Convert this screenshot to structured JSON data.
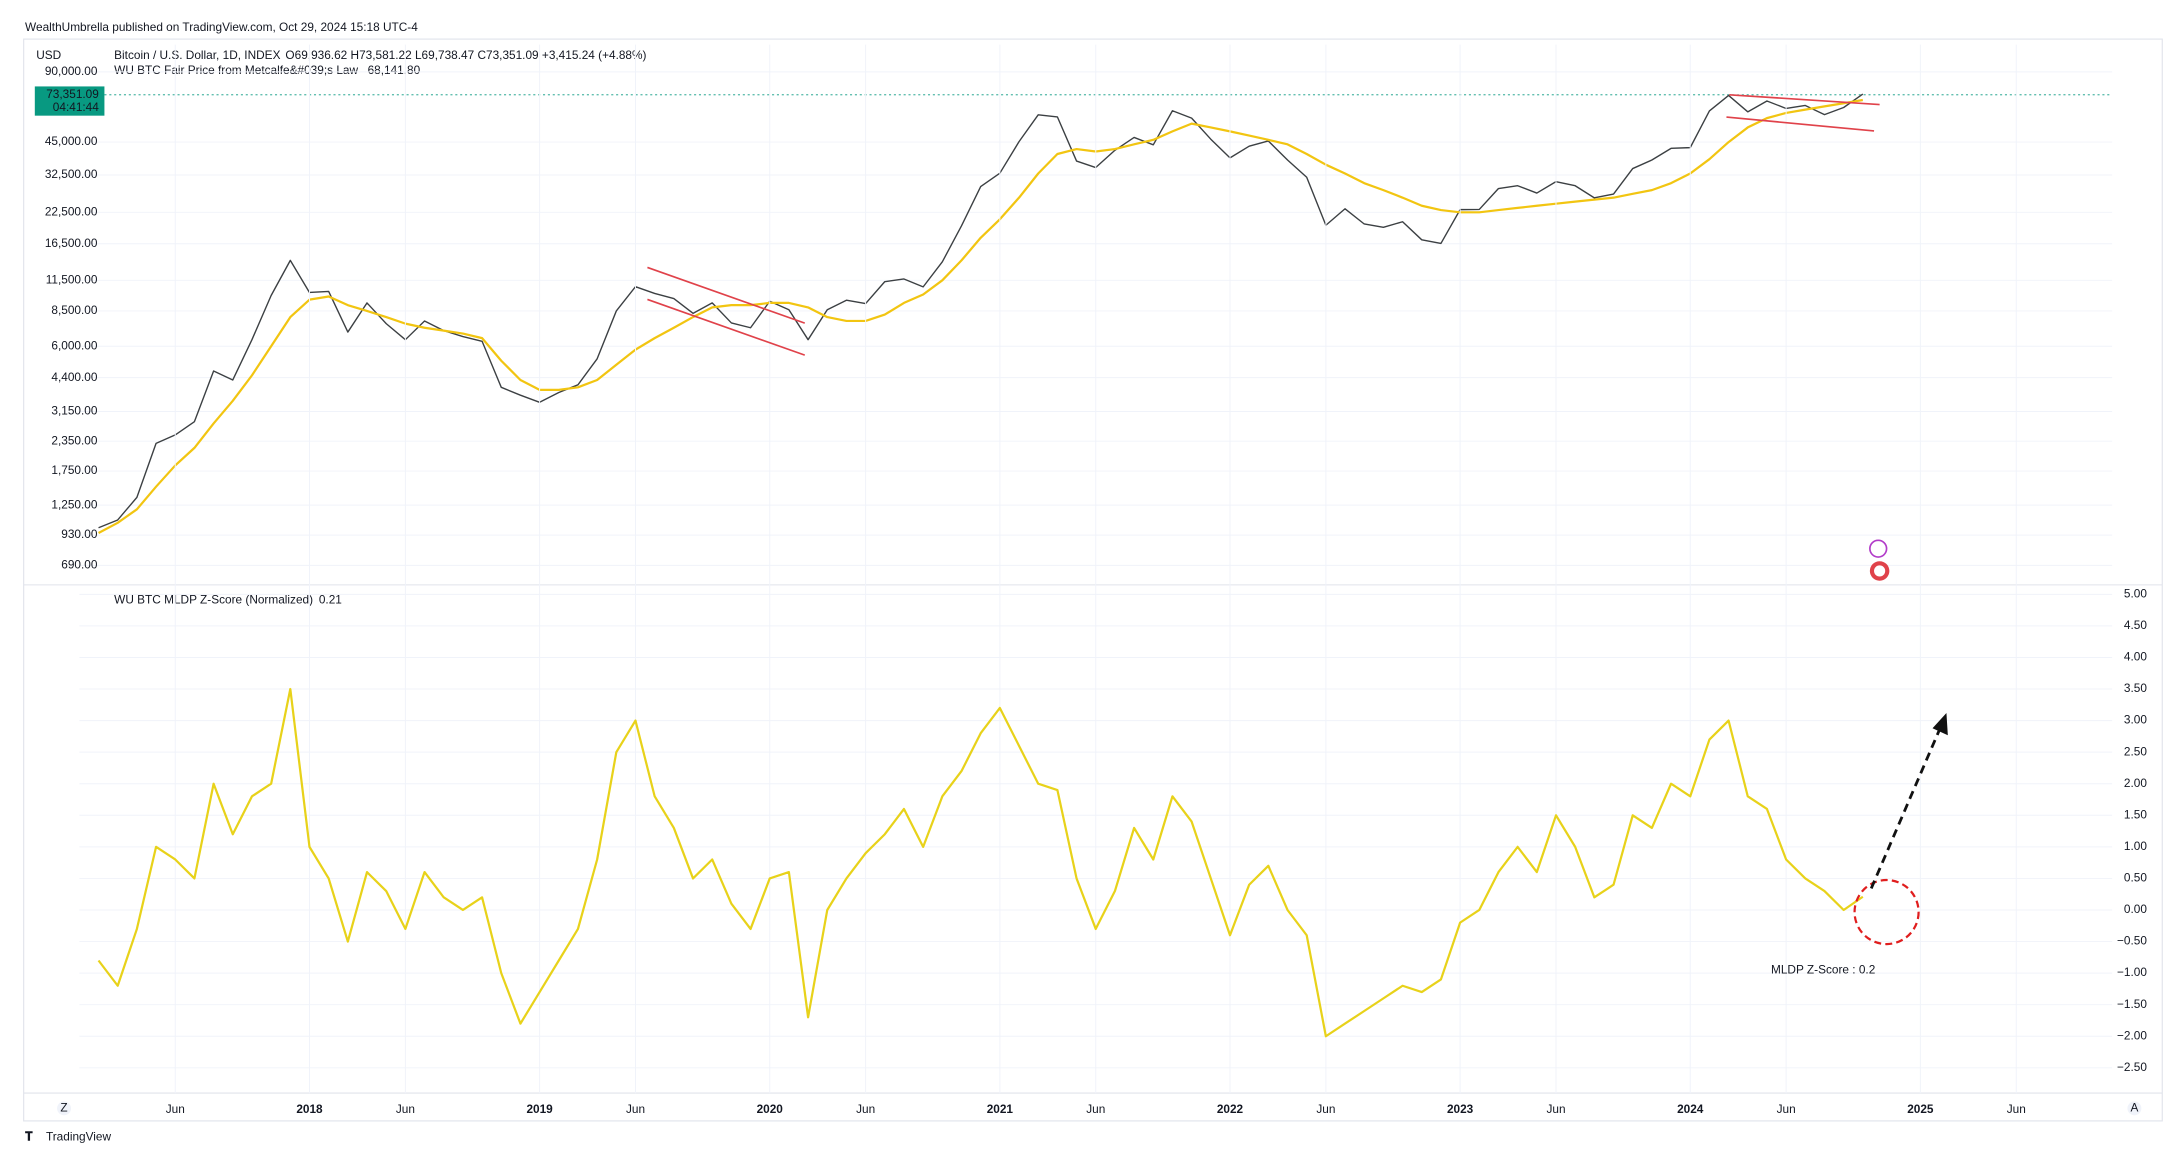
{
  "publisher": "WealthUmbrella published on TradingView.com, Oct 29, 2024 15:18 UTC-4",
  "footer": "TradingView",
  "controls": [
    "Z",
    "A"
  ],
  "chart_data": [
    {
      "type": "line",
      "currency": "USD",
      "ohlc": "O69,936.62 H73,581.22 L69,738.47 C73,351.09 +3,415.24 (+4.88%)",
      "price_tag": {
        "price": "73,351.09",
        "countdown": "04:41:44"
      },
      "log_scale": true,
      "grid": true,
      "xlim": [
        "2017-01",
        "2025-11"
      ],
      "ylim": [
        585,
        117700
      ],
      "yticks": [
        {
          "value": 90000,
          "label": "90,000.00"
        },
        {
          "value": 45000,
          "label": "45,000.00"
        },
        {
          "value": 32500,
          "label": "32,500.00"
        },
        {
          "value": 22500,
          "label": "22,500.00"
        },
        {
          "value": 16500,
          "label": "16,500.00"
        },
        {
          "value": 11500,
          "label": "11,500.00"
        },
        {
          "value": 8500,
          "label": "8,500.00"
        },
        {
          "value": 6000,
          "label": "6,000.00"
        },
        {
          "value": 4400,
          "label": "4,400.00"
        },
        {
          "value": 3150,
          "label": "3,150.00"
        },
        {
          "value": 2350,
          "label": "2,350.00"
        },
        {
          "value": 1750,
          "label": "1,750.00"
        },
        {
          "value": 1250,
          "label": "1,250.00"
        },
        {
          "value": 930,
          "label": "930.00"
        },
        {
          "value": 690,
          "label": "690.00"
        }
      ],
      "x": [
        "2017-02",
        "2017-03",
        "2017-04",
        "2017-05",
        "2017-06",
        "2017-07",
        "2017-08",
        "2017-09",
        "2017-10",
        "2017-11",
        "2017-12",
        "2018-01",
        "2018-02",
        "2018-03",
        "2018-04",
        "2018-05",
        "2018-06",
        "2018-07",
        "2018-08",
        "2018-09",
        "2018-10",
        "2018-11",
        "2018-12",
        "2019-01",
        "2019-02",
        "2019-03",
        "2019-04",
        "2019-05",
        "2019-06",
        "2019-07",
        "2019-08",
        "2019-09",
        "2019-10",
        "2019-11",
        "2019-12",
        "2020-01",
        "2020-02",
        "2020-03",
        "2020-04",
        "2020-05",
        "2020-06",
        "2020-07",
        "2020-08",
        "2020-09",
        "2020-10",
        "2020-11",
        "2020-12",
        "2021-01",
        "2021-02",
        "2021-03",
        "2021-04",
        "2021-05",
        "2021-06",
        "2021-07",
        "2021-08",
        "2021-09",
        "2021-10",
        "2021-11",
        "2021-12",
        "2022-01",
        "2022-02",
        "2022-03",
        "2022-04",
        "2022-05",
        "2022-06",
        "2022-07",
        "2022-08",
        "2022-09",
        "2022-10",
        "2022-11",
        "2022-12",
        "2023-01",
        "2023-02",
        "2023-03",
        "2023-04",
        "2023-05",
        "2023-06",
        "2023-07",
        "2023-08",
        "2023-09",
        "2023-10",
        "2023-11",
        "2023-12",
        "2024-01",
        "2024-02",
        "2024-03",
        "2024-04",
        "2024-05",
        "2024-06",
        "2024-07",
        "2024-08",
        "2024-09",
        "2024-10"
      ],
      "series": [
        {
          "name": "Bitcoin / U.S. Dollar, 1D, INDEX",
          "color": "#3c4043",
          "values": [
            1000,
            1080,
            1350,
            2300,
            2500,
            2850,
            4700,
            4300,
            6400,
            9900,
            14000,
            10200,
            10300,
            6900,
            9200,
            7500,
            6400,
            7700,
            7000,
            6600,
            6300,
            4000,
            3700,
            3450,
            3800,
            4100,
            5300,
            8500,
            10800,
            10100,
            9600,
            8300,
            9200,
            7550,
            7200,
            9350,
            8600,
            6400,
            8600,
            9450,
            9140,
            11350,
            11650,
            10780,
            13800,
            19700,
            29000,
            33100,
            45200,
            58900,
            57700,
            37300,
            35000,
            41500,
            47100,
            43800,
            61300,
            57000,
            46300,
            38500,
            43200,
            45500,
            37700,
            31800,
            19800,
            23300,
            20050,
            19400,
            20500,
            17150,
            16550,
            23100,
            23150,
            28450,
            29250,
            27200,
            30450,
            29250,
            25950,
            26950,
            34650,
            37700,
            42300,
            42600,
            61200,
            71300,
            60650,
            67500,
            62700,
            64600,
            59000,
            63300,
            72300
          ]
        },
        {
          "name": "WU BTC Fair Price from Metcalfe&#039;s Law",
          "color": "#f2c511",
          "last_label": "68,141.80",
          "values": [
            950,
            1050,
            1200,
            1500,
            1850,
            2200,
            2800,
            3500,
            4500,
            6000,
            8000,
            9500,
            9800,
            9000,
            8500,
            8000,
            7500,
            7200,
            7000,
            6800,
            6500,
            5200,
            4300,
            3900,
            3900,
            4000,
            4300,
            5000,
            5800,
            6500,
            7200,
            8000,
            8800,
            9000,
            9000,
            9200,
            9200,
            8800,
            8000,
            7700,
            7700,
            8200,
            9200,
            10000,
            11500,
            14000,
            17500,
            21000,
            26000,
            33000,
            40000,
            42000,
            41000,
            42000,
            44000,
            46000,
            50000,
            54000,
            52000,
            50000,
            48000,
            46000,
            44000,
            40000,
            36000,
            33000,
            30000,
            28000,
            26000,
            24000,
            23000,
            22500,
            22500,
            23000,
            23500,
            24000,
            24500,
            25000,
            25500,
            26000,
            27000,
            28000,
            30000,
            33000,
            38000,
            45000,
            52000,
            57000,
            60000,
            62000,
            64000,
            66000,
            68141.8
          ]
        }
      ]
    },
    {
      "type": "line",
      "grid": true,
      "annotation": "MLDP Z-Score : 0.2",
      "xlim": [
        "2017-01",
        "2025-11"
      ],
      "ylim": [
        -2.9,
        5.15
      ],
      "xticks": [
        {
          "value": "2017-06",
          "label": "Jun"
        },
        {
          "value": "2018-01",
          "label": "2018"
        },
        {
          "value": "2018-06",
          "label": "Jun"
        },
        {
          "value": "2019-01",
          "label": "2019"
        },
        {
          "value": "2019-06",
          "label": "Jun"
        },
        {
          "value": "2020-01",
          "label": "2020"
        },
        {
          "value": "2020-06",
          "label": "Jun"
        },
        {
          "value": "2021-01",
          "label": "2021"
        },
        {
          "value": "2021-06",
          "label": "Jun"
        },
        {
          "value": "2022-01",
          "label": "2022"
        },
        {
          "value": "2022-06",
          "label": "Jun"
        },
        {
          "value": "2023-01",
          "label": "2023"
        },
        {
          "value": "2023-06",
          "label": "Jun"
        },
        {
          "value": "2024-01",
          "label": "2024"
        },
        {
          "value": "2024-06",
          "label": "Jun"
        },
        {
          "value": "2025-01",
          "label": "2025"
        },
        {
          "value": "2025-06",
          "label": "Jun"
        }
      ],
      "yticks": [
        {
          "value": 5,
          "label": "5.00"
        },
        {
          "value": 4.5,
          "label": "4.50"
        },
        {
          "value": 4,
          "label": "4.00"
        },
        {
          "value": 3.5,
          "label": "3.50"
        },
        {
          "value": 3,
          "label": "3.00"
        },
        {
          "value": 2.5,
          "label": "2.50"
        },
        {
          "value": 2,
          "label": "2.00"
        },
        {
          "value": 1.5,
          "label": "1.50"
        },
        {
          "value": 1,
          "label": "1.00"
        },
        {
          "value": 0.5,
          "label": "0.50"
        },
        {
          "value": 0,
          "label": "0.00"
        },
        {
          "value": -0.5,
          "label": "−0.50"
        },
        {
          "value": -1,
          "label": "−1.00"
        },
        {
          "value": -1.5,
          "label": "−1.50"
        },
        {
          "value": -2,
          "label": "−2.00"
        },
        {
          "value": -2.5,
          "label": "−2.50"
        }
      ],
      "x": [
        "2017-02",
        "2017-03",
        "2017-04",
        "2017-05",
        "2017-06",
        "2017-07",
        "2017-08",
        "2017-09",
        "2017-10",
        "2017-11",
        "2017-12",
        "2018-01",
        "2018-02",
        "2018-03",
        "2018-04",
        "2018-05",
        "2018-06",
        "2018-07",
        "2018-08",
        "2018-09",
        "2018-10",
        "2018-11",
        "2018-12",
        "2019-01",
        "2019-02",
        "2019-03",
        "2019-04",
        "2019-05",
        "2019-06",
        "2019-07",
        "2019-08",
        "2019-09",
        "2019-10",
        "2019-11",
        "2019-12",
        "2020-01",
        "2020-02",
        "2020-03",
        "2020-04",
        "2020-05",
        "2020-06",
        "2020-07",
        "2020-08",
        "2020-09",
        "2020-10",
        "2020-11",
        "2020-12",
        "2021-01",
        "2021-02",
        "2021-03",
        "2021-04",
        "2021-05",
        "2021-06",
        "2021-07",
        "2021-08",
        "2021-09",
        "2021-10",
        "2021-11",
        "2021-12",
        "2022-01",
        "2022-02",
        "2022-03",
        "2022-04",
        "2022-05",
        "2022-06",
        "2022-07",
        "2022-08",
        "2022-09",
        "2022-10",
        "2022-11",
        "2022-12",
        "2023-01",
        "2023-02",
        "2023-03",
        "2023-04",
        "2023-05",
        "2023-06",
        "2023-07",
        "2023-08",
        "2023-09",
        "2023-10",
        "2023-11",
        "2023-12",
        "2024-01",
        "2024-02",
        "2024-03",
        "2024-04",
        "2024-05",
        "2024-06",
        "2024-07",
        "2024-08",
        "2024-09",
        "2024-10"
      ],
      "series": [
        {
          "name": "WU BTC MLDP Z-Score (Normalized)",
          "color": "#e8d21a",
          "last_label": "0.21",
          "values": [
            -0.8,
            -1.2,
            -0.3,
            1.0,
            0.8,
            0.5,
            2.0,
            1.2,
            1.8,
            2.0,
            3.5,
            1.0,
            0.5,
            -0.5,
            0.6,
            0.3,
            -0.3,
            0.6,
            0.2,
            0.0,
            0.2,
            -1.0,
            -1.8,
            -1.3,
            -0.8,
            -0.3,
            0.8,
            2.5,
            3.0,
            1.8,
            1.3,
            0.5,
            0.8,
            0.1,
            -0.3,
            0.5,
            0.6,
            -1.7,
            0.0,
            0.5,
            0.9,
            1.2,
            1.6,
            1.0,
            1.8,
            2.2,
            2.8,
            3.2,
            2.6,
            2.0,
            1.9,
            0.5,
            -0.3,
            0.3,
            1.3,
            0.8,
            1.8,
            1.4,
            0.5,
            -0.4,
            0.4,
            0.7,
            0.0,
            -0.4,
            -2.0,
            -1.8,
            -1.6,
            -1.4,
            -1.2,
            -1.3,
            -1.1,
            -0.2,
            0.0,
            0.6,
            1.0,
            0.6,
            1.5,
            1.0,
            0.2,
            0.4,
            1.5,
            1.3,
            2.0,
            1.8,
            2.7,
            3.0,
            1.8,
            1.6,
            0.8,
            0.5,
            0.3,
            0.0,
            0.21
          ]
        }
      ]
    }
  ]
}
